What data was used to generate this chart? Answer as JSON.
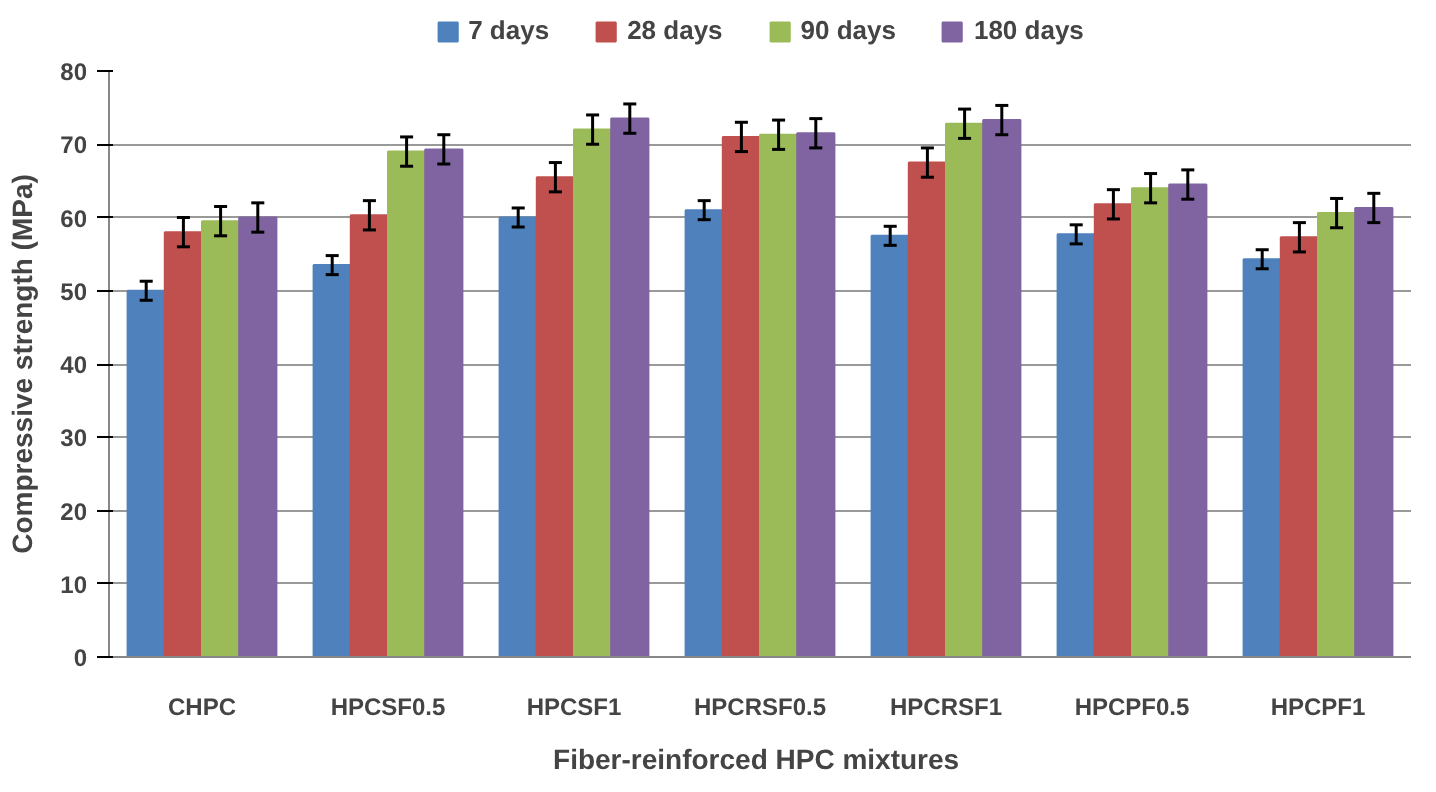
{
  "chart_data": {
    "type": "bar",
    "xlabel": "Fiber-reinforced  HPC mixtures",
    "ylabel": "Compressive strength (MPa)",
    "categories": [
      "CHPC",
      "HPCSF0.5",
      "HPCSF1",
      "HPCRSF0.5",
      "HPCRSF1",
      "HPCPF0.5",
      "HPCPF1"
    ],
    "series": [
      {
        "name": "7 days",
        "color": "#4f81bd",
        "values": [
          50,
          53.5,
          60,
          61,
          57.5,
          57.7,
          54.3
        ],
        "errors": [
          1.3,
          1.3,
          1.3,
          1.3,
          1.3,
          1.3,
          1.3
        ]
      },
      {
        "name": "28 days",
        "color": "#c0504d",
        "values": [
          58,
          60.3,
          65.5,
          71,
          67.5,
          61.8,
          57.3
        ],
        "errors": [
          2,
          2,
          2,
          2,
          2,
          2,
          2
        ]
      },
      {
        "name": "90 days",
        "color": "#9bbb59",
        "values": [
          59.5,
          69,
          72,
          71.3,
          72.8,
          64,
          60.6
        ],
        "errors": [
          2,
          2,
          2,
          2,
          2,
          2,
          2
        ]
      },
      {
        "name": "180 days",
        "color": "#8064a2",
        "values": [
          60,
          69.3,
          73.5,
          71.5,
          73.3,
          64.5,
          61.3
        ],
        "errors": [
          2,
          2,
          2,
          2,
          2,
          2,
          2
        ]
      }
    ],
    "ylim": [
      0,
      80
    ],
    "yticks": [
      0,
      10,
      20,
      30,
      40,
      50,
      60,
      70,
      80
    ],
    "grid": "y",
    "legend": "top"
  }
}
